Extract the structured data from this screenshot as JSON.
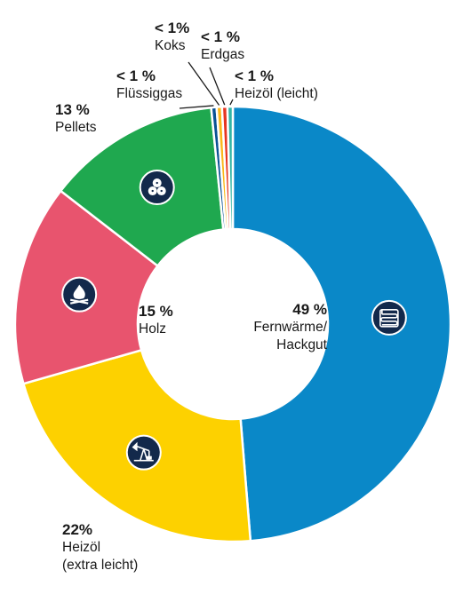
{
  "chart_data": {
    "type": "pie",
    "style": "donut",
    "slices": [
      {
        "label": "Fernwärme/ Hackgut",
        "value": 49,
        "value_label": "49 %",
        "color": "#0a88c8",
        "icon": "heat-exchanger-icon"
      },
      {
        "label": "Heizöl (extra leicht)",
        "value": 22,
        "value_label": "22%",
        "color": "#fdd100",
        "icon": "oil-pump-icon"
      },
      {
        "label": "Holz",
        "value": 15,
        "value_label": "15 %",
        "color": "#e8546e",
        "icon": "campfire-icon"
      },
      {
        "label": "Pellets",
        "value": 13,
        "value_label": "13 %",
        "color": "#1fa84f",
        "icon": "pellets-icon"
      },
      {
        "label": "Flüssiggas",
        "value": 0.4,
        "value_label": "< 1 %",
        "color": "#0a5294"
      },
      {
        "label": "Koks",
        "value": 0.4,
        "value_label": "< 1%",
        "color": "#fbb81b"
      },
      {
        "label": "Erdgas",
        "value": 0.4,
        "value_label": "< 1 %",
        "color": "#e73522"
      },
      {
        "label": "Heizöl (leicht)",
        "value": 0.4,
        "value_label": "< 1 %",
        "color": "#33b5a5"
      }
    ],
    "labels": {
      "fern_pct": "49 %",
      "fern_l1": "Fernwärme/",
      "fern_l2": "Hackgut",
      "holz_pct": "15 %",
      "holz_name": "Holz",
      "oel_pct": "22%",
      "oel_l1": "Heizöl",
      "oel_l2": "(extra leicht)",
      "pel_pct": "13 %",
      "pel_name": "Pellets",
      "fl_pct": "< 1 %",
      "fl_name": "Flüssiggas",
      "koks_pct": "< 1%",
      "koks_name": "Koks",
      "erd_pct": "< 1 %",
      "erd_name": "Erdgas",
      "ho_pct": "< 1 %",
      "ho_name": "Heizöl (leicht)"
    }
  }
}
